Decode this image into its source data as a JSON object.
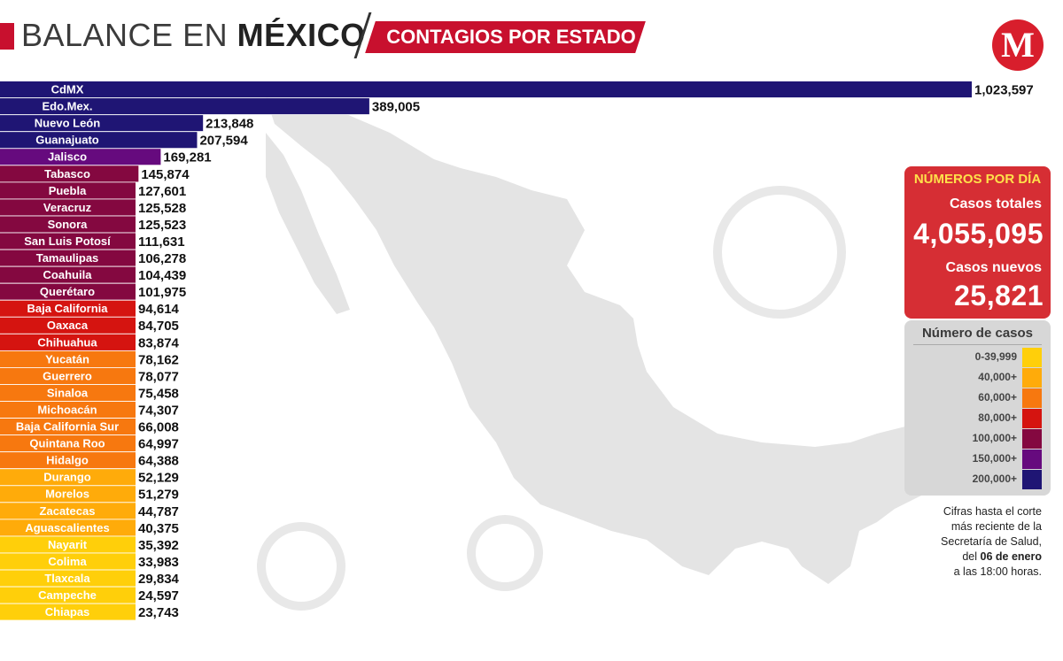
{
  "header": {
    "title_light": "BALANCE EN ",
    "title_bold": "MÉXICO",
    "tag": "CONTAGIOS POR ESTADO",
    "logo": "M"
  },
  "colors": {
    "brand_red": "#c8102e",
    "box_red": "#d62e34",
    "legend_bg": "#d7d7d7",
    "map_gray": "#e4e4e4"
  },
  "summary": {
    "heading": "NÚMEROS POR DÍA",
    "total_label": "Casos totales",
    "total_value": "4,055,095",
    "new_label": "Casos nuevos",
    "new_value": "25,821"
  },
  "legend": {
    "title": "Número de casos",
    "items": [
      {
        "label": "0-39,999",
        "color": "#ffcf0a"
      },
      {
        "label": "40,000+",
        "color": "#ffab0a"
      },
      {
        "label": "60,000+",
        "color": "#f7780f"
      },
      {
        "label": "80,000+",
        "color": "#d51410"
      },
      {
        "label": "100,000+",
        "color": "#840840"
      },
      {
        "label": "150,000+",
        "color": "#660a7e"
      },
      {
        "label": "200,000+",
        "color": "#1f1574"
      }
    ]
  },
  "note": {
    "line1": "Cifras hasta el corte",
    "line2": "más reciente de la",
    "line3": "Secretaría de Salud,",
    "line4_pre": "del ",
    "line4_bold": "06 de enero",
    "line5": "a las 18:00 horas."
  },
  "chart_data": {
    "type": "bar",
    "orientation": "horizontal",
    "title": "CONTAGIOS POR ESTADO",
    "categories": [
      "CdMX",
      "Edo.Mex.",
      "Nuevo León",
      "Guanajuato",
      "Jalisco",
      "Tabasco",
      "Puebla",
      "Veracruz",
      "Sonora",
      "San Luis Potosí",
      "Tamaulipas",
      "Coahuila",
      "Querétaro",
      "Baja California",
      "Oaxaca",
      "Chihuahua",
      "Yucatán",
      "Guerrero",
      "Sinaloa",
      "Michoacán",
      "Baja California Sur",
      "Quintana Roo",
      "Hidalgo",
      "Durango",
      "Morelos",
      "Zacatecas",
      "Aguascalientes",
      "Nayarit",
      "Colima",
      "Tlaxcala",
      "Campeche",
      "Chiapas"
    ],
    "values": [
      1023597,
      389005,
      213848,
      207594,
      169281,
      145874,
      127601,
      125528,
      125523,
      111631,
      106278,
      104439,
      101975,
      94614,
      84705,
      83874,
      78162,
      78077,
      75458,
      74307,
      66008,
      64997,
      64388,
      52129,
      51279,
      44787,
      40375,
      35392,
      33983,
      29834,
      24597,
      23743
    ],
    "value_labels": [
      "1,023,597",
      "389,005",
      "213,848",
      "207,594",
      "169,281",
      "145,874",
      "127,601",
      "125,528",
      "125,523",
      "111,631",
      "106,278",
      "104,439",
      "101,975",
      "94,614",
      "84,705",
      "83,874",
      "78,162",
      "78,077",
      "75,458",
      "74,307",
      "66,008",
      "64,997",
      "64,388",
      "52,129",
      "51,279",
      "44,787",
      "40,375",
      "35,392",
      "33,983",
      "29,834",
      "24,597",
      "23,743"
    ],
    "color_scale": [
      {
        "min": 0,
        "color": "#ffcf0a"
      },
      {
        "min": 40000,
        "color": "#ffab0a"
      },
      {
        "min": 60000,
        "color": "#f7780f"
      },
      {
        "min": 80000,
        "color": "#d51410"
      },
      {
        "min": 100000,
        "color": "#840840"
      },
      {
        "min": 150000,
        "color": "#660a7e"
      },
      {
        "min": 200000,
        "color": "#1f1574"
      }
    ],
    "xlim": [
      0,
      1023597
    ],
    "grid": false
  }
}
